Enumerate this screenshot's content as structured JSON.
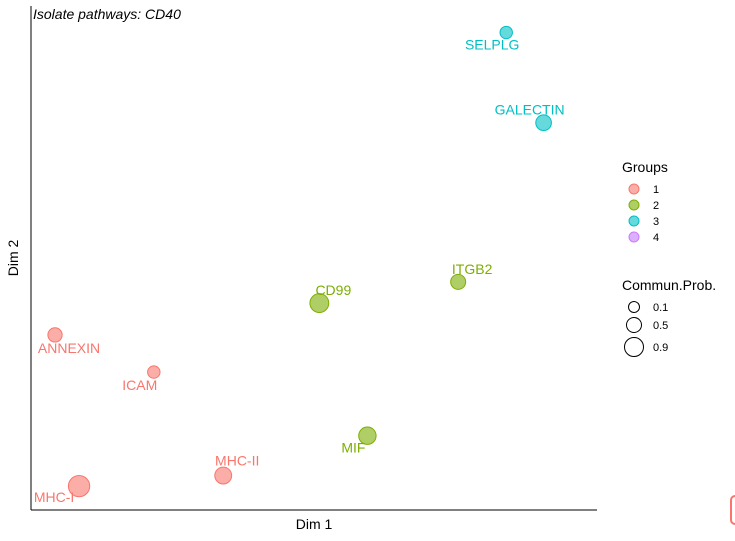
{
  "chart_data": {
    "type": "scatter",
    "title": "Isolate pathways:  CD40",
    "xlabel": "Dim 1",
    "ylabel": "Dim 2",
    "grid": false,
    "points": [
      {
        "label": "SELPLG",
        "x": 8.9,
        "y": 9.0,
        "group": "3",
        "prob": 0.1
      },
      {
        "label": "GALECTIN",
        "x": 9.6,
        "y": 7.3,
        "group": "3",
        "prob": 0.3
      },
      {
        "label": "ITGB2",
        "x": 8.0,
        "y": 4.3,
        "group": "2",
        "prob": 0.25
      },
      {
        "label": "CD99",
        "x": 5.4,
        "y": 3.9,
        "group": "2",
        "prob": 0.6
      },
      {
        "label": "ANNEXIN",
        "x": 0.45,
        "y": 3.3,
        "group": "1",
        "prob": 0.2
      },
      {
        "label": "ICAM",
        "x": 2.3,
        "y": 2.6,
        "group": "1",
        "prob": 0.1
      },
      {
        "label": "MIF",
        "x": 6.3,
        "y": 1.4,
        "group": "2",
        "prob": 0.45
      },
      {
        "label": "MHC-II",
        "x": 3.6,
        "y": 0.65,
        "group": "1",
        "prob": 0.4
      },
      {
        "label": "MHC-I",
        "x": 0.9,
        "y": 0.45,
        "group": "1",
        "prob": 0.9
      }
    ],
    "legend_groups": {
      "title": "Groups",
      "entries": [
        {
          "name": "1",
          "color": "#F8766D"
        },
        {
          "name": "2",
          "color": "#7CAE00"
        },
        {
          "name": "3",
          "color": "#00BFC4"
        },
        {
          "name": "4",
          "color": "#C77CFF"
        }
      ]
    },
    "legend_size": {
      "title": "Commun.Prob.",
      "entries": [
        {
          "name": "0.1",
          "value": 0.1
        },
        {
          "name": "0.5",
          "value": 0.5
        },
        {
          "name": "0.9",
          "value": 0.9
        }
      ]
    },
    "label_colors": {
      "1": "#F8766D",
      "2": "#7CAE00",
      "3": "#00BFC4",
      "4": "#C77CFF"
    }
  }
}
